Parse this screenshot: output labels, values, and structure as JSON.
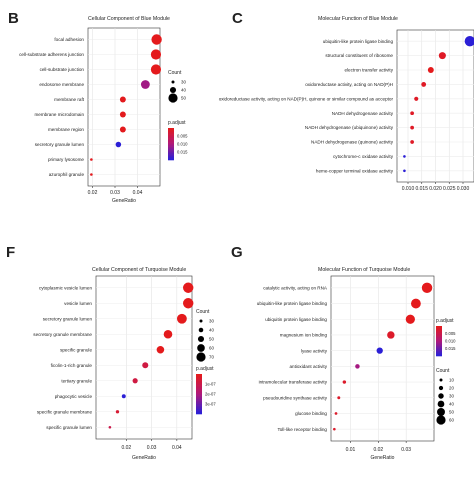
{
  "chart_data": [
    {
      "type": "scatter",
      "panel_letter": "B",
      "title": "Cellular Component of Blue Module",
      "xlabel": "GeneRatio",
      "xlim": [
        0.018,
        0.05
      ],
      "xticks": [
        0.02,
        0.03,
        0.04
      ],
      "xtick_labels": [
        "0.02",
        "0.03",
        "0.04"
      ],
      "categories": [
        "focal adhesion",
        "cell-substrate adherens junction",
        "cell-substrate junction",
        "endosome membrane",
        "membrane raft",
        "membrane microdomain",
        "membrane region",
        "secretory granule lumen",
        "primary lysosome",
        "azurophil granule"
      ],
      "x": [
        0.0485,
        0.0482,
        0.0482,
        0.0435,
        0.0335,
        0.0335,
        0.0335,
        0.0315,
        0.0195,
        0.0195
      ],
      "count": [
        55,
        54,
        54,
        48,
        35,
        35,
        35,
        33,
        20,
        20
      ],
      "p_adjust": [
        0.0002,
        0.0002,
        0.0002,
        0.009,
        0.0003,
        0.0003,
        0.0003,
        0.016,
        0.0004,
        0.0004
      ],
      "legend": {
        "count_title": "Count",
        "count_values": [
          30,
          40,
          50
        ],
        "color_title": "p.adjust",
        "color_ticks": [
          "0.005",
          "0.010",
          "0.015"
        ]
      }
    },
    {
      "type": "scatter",
      "panel_letter": "C",
      "title": "Molecular Function of Blue Module",
      "xlabel": "GeneRatio",
      "xlim": [
        0.006,
        0.034
      ],
      "xticks": [
        0.01,
        0.015,
        0.02,
        0.025,
        0.03
      ],
      "xtick_labels": [
        "0.010",
        "0.015",
        "0.020",
        "0.025",
        "0.030"
      ],
      "categories": [
        "ubiquitin-like protein ligase binding",
        "structural constituent of ribosome",
        "electron transfer activity",
        "oxidoreductase activity, acting on NAD(P)H",
        "oxidoreductase activity, acting on NAD(P)H, quinone or similar compound as acceptor",
        "NADH dehydrogenase activity",
        "NADH dehydrogenase (ubiquinone) activity",
        "NADH dehydrogenase (quinone) activity",
        "cytochrome-c oxidase activity",
        "heme-copper terminal oxidase activity"
      ],
      "x": [
        0.0325,
        0.0225,
        0.0183,
        0.0157,
        0.013,
        0.0115,
        0.0115,
        0.0115,
        0.0087,
        0.0087
      ],
      "count": [
        45,
        30,
        25,
        20,
        17,
        15,
        15,
        15,
        10,
        10
      ],
      "p_adjust": [
        0.02,
        0.002,
        0.001,
        0.002,
        0.002,
        0.002,
        0.002,
        0.002,
        0.02,
        0.02
      ]
    },
    {
      "type": "scatter",
      "panel_letter": "F",
      "title": "Cellular Component of Turquoise Module",
      "xlabel": "GeneRatio",
      "xlim": [
        0.008,
        0.046
      ],
      "xticks": [
        0.02,
        0.03,
        0.04
      ],
      "xtick_labels": [
        "0.02",
        "0.03",
        "0.04"
      ],
      "categories": [
        "cytoplasmic vesicle lumen",
        "vesicle lumen",
        "secretory granule lumen",
        "secretory granule membrane",
        "specific granule",
        "ficolin-1-rich granule",
        "tertiary granule",
        "phagocytic vesicle",
        "specific granule membrane",
        "specific granule lumen"
      ],
      "x": [
        0.0445,
        0.0445,
        0.042,
        0.0365,
        0.0335,
        0.0275,
        0.0235,
        0.019,
        0.0165,
        0.0135
      ],
      "count": [
        74,
        74,
        70,
        62,
        55,
        45,
        39,
        31,
        27,
        22
      ],
      "p_adjust": [
        2e-10,
        2e-10,
        3e-10,
        2e-10,
        3e-10,
        8e-08,
        8e-08,
        4e-07,
        5e-08,
        1e-07
      ],
      "legend": {
        "count_title": "Count",
        "count_values": [
          30,
          40,
          50,
          60,
          70
        ],
        "color_title": "p.adjust",
        "color_ticks": [
          "1e-07",
          "2e-07",
          "3e-07"
        ]
      }
    },
    {
      "type": "scatter",
      "panel_letter": "G",
      "title": "Molecular Function of Turquoise Module",
      "xlabel": "GeneRatio",
      "xlim": [
        0.003,
        0.04
      ],
      "xticks": [
        0.01,
        0.02,
        0.03
      ],
      "xtick_labels": [
        "0.01",
        "0.02",
        "0.03"
      ],
      "categories": [
        "catalytic activity, acting on RNA",
        "ubiquitin-like protein ligase binding",
        "ubiquitin protein ligase binding",
        "magnesium ion binding",
        "lyase activity",
        "antioxidant activity",
        "intramolecular transferase activity",
        "pseudouridine synthase activity",
        "glucose binding",
        "Toll-like receptor binding"
      ],
      "x": [
        0.0375,
        0.0335,
        0.0315,
        0.0245,
        0.0205,
        0.0125,
        0.0078,
        0.0058,
        0.0048,
        0.0042
      ],
      "count": [
        75,
        70,
        65,
        50,
        40,
        25,
        16,
        12,
        10,
        9
      ],
      "p_adjust": [
        0.002,
        0.002,
        0.002,
        0.003,
        0.015,
        0.009,
        0.003,
        0.003,
        0.003,
        0.003
      ],
      "legend": {
        "count_title": "Count",
        "count_values": [
          10,
          20,
          30,
          40,
          50,
          60
        ],
        "color_title": "p.adjust",
        "color_ticks": [
          "0.005",
          "0.010",
          "0.015"
        ]
      }
    }
  ]
}
